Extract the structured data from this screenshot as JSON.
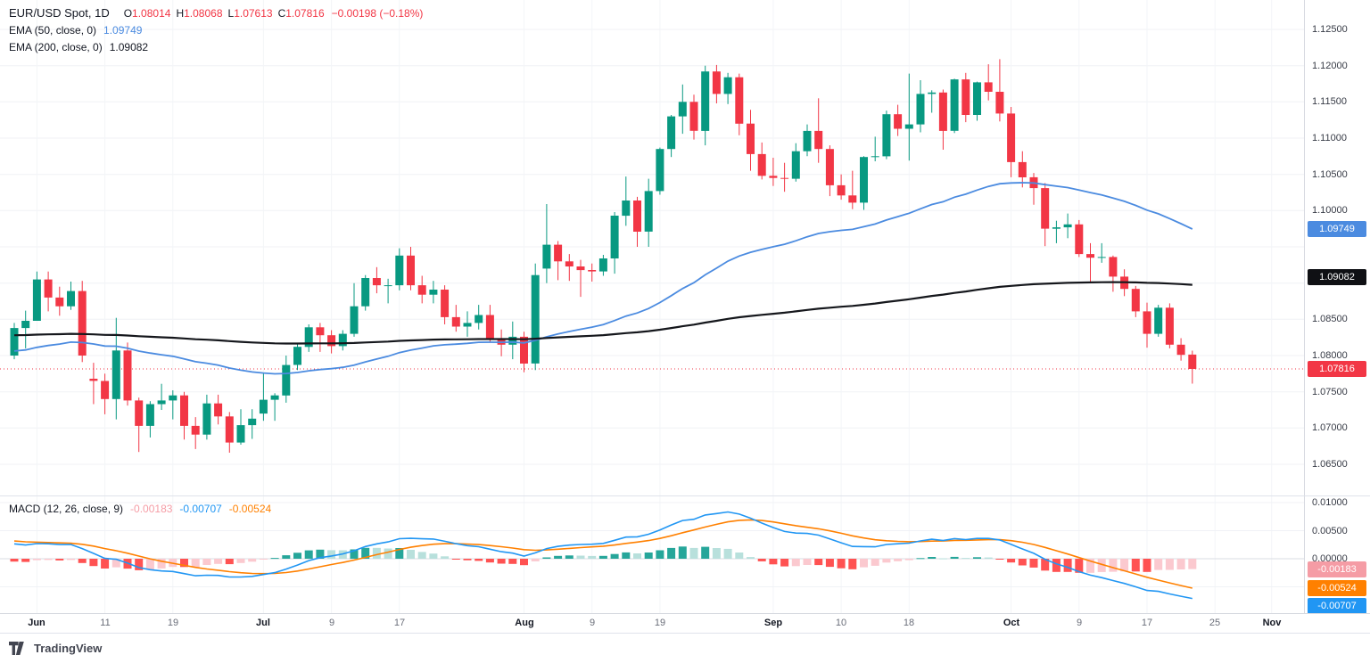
{
  "legend": {
    "symbol": "EUR/USD Spot, 1D",
    "ohlc": {
      "o_label": "O",
      "o": "1.08014",
      "h_label": "H",
      "h": "1.08068",
      "l_label": "L",
      "l": "1.07613",
      "c_label": "C",
      "c": "1.07816",
      "change": "−0.00198 (−0.18%)"
    },
    "ema50": {
      "label": "EMA (50, close, 0)",
      "value": "1.09749"
    },
    "ema200": {
      "label": "EMA (200, close, 0)",
      "value": "1.09082"
    },
    "macd": {
      "label": "MACD (12, 26, close, 9)",
      "hist_value": "-0.00183",
      "macd_value": "-0.00707",
      "signal_value": "-0.00524"
    }
  },
  "footer": {
    "brand": "TradingView"
  },
  "colors": {
    "up": "#089981",
    "down": "#f23645",
    "grid": "#f0f2f6",
    "grid_v": "#f3f5f8",
    "zero_line": "#dadde3",
    "ema50": "#4b8be0",
    "ema200": "#15171c",
    "macd_line": "#2196f3",
    "signal_line": "#ff8000",
    "hist_up": "#26a69a",
    "hist_up_fade": "#b8e0dc",
    "hist_down": "#ff5252",
    "hist_down_fade": "#fbc9cf",
    "last_close_line": "#f23645"
  },
  "chart_data": {
    "type": "candlestick",
    "title": "EUR/USD Spot, 1D",
    "symbol": "EUR/USD Spot",
    "interval": "1D",
    "ylim": [
      1.0607,
      1.12906
    ],
    "grid": true,
    "legend_position": "top-left",
    "price_ticks": [
      "1.12500",
      "1.12000",
      "1.11500",
      "1.11000",
      "1.10500",
      "1.10000",
      "1.08500",
      "1.08000",
      "1.07500",
      "1.07000",
      "1.06500"
    ],
    "price_badges": [
      {
        "text": "1.09749",
        "bg": "#4b8be0"
      },
      {
        "text": "1.09082",
        "bg": "#0f1014"
      },
      {
        "text": "1.07816",
        "bg": "#f23645"
      }
    ],
    "last_close": 1.07816,
    "candles": [
      [
        "May 30",
        1.08,
        1.0845,
        1.0795,
        1.0838
      ],
      [
        "May 31",
        1.0838,
        1.0862,
        1.081,
        1.0848
      ],
      [
        "Jun 3",
        1.0848,
        1.0916,
        1.0848,
        1.0905
      ],
      [
        "Jun 4",
        1.0905,
        1.0916,
        1.0861,
        1.088
      ],
      [
        "Jun 5",
        1.088,
        1.0895,
        1.0855,
        1.0868
      ],
      [
        "Jun 6",
        1.0868,
        1.0902,
        1.0863,
        1.0889
      ],
      [
        "Jun 7",
        1.0889,
        1.0903,
        1.0791,
        1.08
      ],
      [
        "Jun 10",
        1.0768,
        1.079,
        1.0733,
        1.0765
      ],
      [
        "Jun 11",
        1.0765,
        1.0775,
        1.0719,
        1.074
      ],
      [
        "Jun 12",
        1.074,
        1.0852,
        1.0712,
        1.0807
      ],
      [
        "Jun 13",
        1.0807,
        1.0818,
        1.0731,
        1.0738
      ],
      [
        "Jun 14",
        1.0738,
        1.0742,
        1.0667,
        1.0703
      ],
      [
        "Jun 17",
        1.0703,
        1.0737,
        1.0687,
        1.0733
      ],
      [
        "Jun 18",
        1.0733,
        1.0761,
        1.0725,
        1.0738
      ],
      [
        "Jun 19",
        1.0738,
        1.0752,
        1.0712,
        1.0745
      ],
      [
        "Jun 20",
        1.0745,
        1.075,
        1.0684,
        1.0703
      ],
      [
        "Jun 21",
        1.0703,
        1.0715,
        1.0671,
        1.0691
      ],
      [
        "Jun 24",
        1.0691,
        1.0746,
        1.0684,
        1.0734
      ],
      [
        "Jun 25",
        1.0734,
        1.0746,
        1.0705,
        1.0716
      ],
      [
        "Jun 26",
        1.0716,
        1.0722,
        1.0666,
        1.068
      ],
      [
        "Jun 27",
        1.068,
        1.0726,
        1.0677,
        1.0704
      ],
      [
        "Jun 28",
        1.0704,
        1.0726,
        1.0685,
        1.0713
      ],
      [
        "Jul 1",
        1.072,
        1.0776,
        1.071,
        1.0739
      ],
      [
        "Jul 2",
        1.0739,
        1.0748,
        1.071,
        1.0745
      ],
      [
        "Jul 3",
        1.0745,
        1.08,
        1.0735,
        1.0787
      ],
      [
        "Jul 4",
        1.0787,
        1.0816,
        1.078,
        1.0812
      ],
      [
        "Jul 5",
        1.0812,
        1.0843,
        1.0805,
        1.0839
      ],
      [
        "Jul 8",
        1.0839,
        1.0845,
        1.0805,
        1.0828
      ],
      [
        "Jul 9",
        1.0828,
        1.0835,
        1.0803,
        1.0813
      ],
      [
        "Jul 10",
        1.0813,
        1.0835,
        1.0807,
        1.083
      ],
      [
        "Jul 11",
        1.083,
        1.09,
        1.0826,
        1.0868
      ],
      [
        "Jul 12",
        1.0868,
        1.0911,
        1.0862,
        1.0907
      ],
      [
        "Jul 15",
        1.0907,
        1.0922,
        1.0886,
        1.0897
      ],
      [
        "Jul 16",
        1.0897,
        1.0906,
        1.0872,
        1.0897
      ],
      [
        "Jul 17",
        1.0897,
        1.0948,
        1.089,
        1.0938
      ],
      [
        "Jul 18",
        1.0938,
        1.095,
        1.089,
        1.0897
      ],
      [
        "Jul 19",
        1.0897,
        1.091,
        1.0872,
        1.0884
      ],
      [
        "Jul 22",
        1.0884,
        1.0903,
        1.0872,
        1.0891
      ],
      [
        "Jul 23",
        1.0891,
        1.0897,
        1.0843,
        1.0853
      ],
      [
        "Jul 24",
        1.0853,
        1.087,
        1.0833,
        1.084
      ],
      [
        "Jul 25",
        1.084,
        1.0861,
        1.0826,
        1.0845
      ],
      [
        "Jul 26",
        1.0845,
        1.087,
        1.0836,
        1.0856
      ],
      [
        "Jul 29",
        1.0856,
        1.087,
        1.0819,
        1.0823
      ],
      [
        "Jul 30",
        1.0823,
        1.0836,
        1.0799,
        1.0815
      ],
      [
        "Jul 31",
        1.0815,
        1.0847,
        1.0795,
        1.0826
      ],
      [
        "Aug 1",
        1.0826,
        1.0833,
        1.0777,
        1.0789
      ],
      [
        "Aug 2",
        1.0789,
        1.0927,
        1.078,
        1.0911
      ],
      [
        "Aug 5",
        1.092,
        1.1009,
        1.09,
        1.0953
      ],
      [
        "Aug 6",
        1.0953,
        1.0958,
        1.0904,
        1.093
      ],
      [
        "Aug 7",
        1.093,
        1.094,
        1.0903,
        1.0923
      ],
      [
        "Aug 8",
        1.0923,
        1.0932,
        1.0881,
        1.0918
      ],
      [
        "Aug 9",
        1.0918,
        1.0927,
        1.0902,
        1.0916
      ],
      [
        "Aug 12",
        1.0916,
        1.0939,
        1.091,
        1.0934
      ],
      [
        "Aug 13",
        1.0934,
        1.0998,
        1.0913,
        1.0993
      ],
      [
        "Aug 14",
        1.0993,
        1.1047,
        1.0979,
        1.1014
      ],
      [
        "Aug 15",
        1.1014,
        1.1019,
        1.095,
        1.0971
      ],
      [
        "Aug 16",
        1.0971,
        1.1044,
        1.095,
        1.1027
      ],
      [
        "Aug 19",
        1.1027,
        1.1087,
        1.1022,
        1.1085
      ],
      [
        "Aug 20",
        1.1085,
        1.1132,
        1.1074,
        1.113
      ],
      [
        "Aug 21",
        1.113,
        1.1174,
        1.1106,
        1.115
      ],
      [
        "Aug 22",
        1.115,
        1.116,
        1.1098,
        1.111
      ],
      [
        "Aug 23",
        1.111,
        1.12,
        1.109,
        1.1192
      ],
      [
        "Aug 26",
        1.1192,
        1.1201,
        1.1148,
        1.1161
      ],
      [
        "Aug 27",
        1.1161,
        1.119,
        1.1147,
        1.1184
      ],
      [
        "Aug 28",
        1.1184,
        1.1189,
        1.1104,
        1.112
      ],
      [
        "Aug 29",
        1.112,
        1.1139,
        1.1055,
        1.1078
      ],
      [
        "Aug 30",
        1.1078,
        1.1094,
        1.1043,
        1.1048
      ],
      [
        "Sep 2",
        1.1048,
        1.1073,
        1.1034,
        1.1045
      ],
      [
        "Sep 3",
        1.1045,
        1.1066,
        1.1026,
        1.1044
      ],
      [
        "Sep 4",
        1.1044,
        1.1093,
        1.104,
        1.1082
      ],
      [
        "Sep 5",
        1.1082,
        1.1119,
        1.1075,
        1.111
      ],
      [
        "Sep 6",
        1.111,
        1.1155,
        1.1066,
        1.1085
      ],
      [
        "Sep 9",
        1.1085,
        1.109,
        1.102,
        1.1035
      ],
      [
        "Sep 10",
        1.1035,
        1.105,
        1.1015,
        1.1021
      ],
      [
        "Sep 11",
        1.1021,
        1.1055,
        1.1002,
        1.1011
      ],
      [
        "Sep 12",
        1.1011,
        1.1075,
        1.1001,
        1.1074
      ],
      [
        "Sep 13",
        1.1074,
        1.1102,
        1.1068,
        1.1075
      ],
      [
        "Sep 16",
        1.1075,
        1.1138,
        1.1071,
        1.1133
      ],
      [
        "Sep 17",
        1.1133,
        1.1146,
        1.1103,
        1.1113
      ],
      [
        "Sep 18",
        1.1113,
        1.1189,
        1.1069,
        1.1119
      ],
      [
        "Sep 19",
        1.1119,
        1.118,
        1.1108,
        1.1161
      ],
      [
        "Sep 20",
        1.1161,
        1.1166,
        1.1135,
        1.1163
      ],
      [
        "Sep 23",
        1.1163,
        1.1167,
        1.1084,
        1.111
      ],
      [
        "Sep 24",
        1.111,
        1.1182,
        1.1107,
        1.1181
      ],
      [
        "Sep 25",
        1.1181,
        1.119,
        1.1122,
        1.1132
      ],
      [
        "Sep 26",
        1.1132,
        1.1178,
        1.1124,
        1.1177
      ],
      [
        "Sep 27",
        1.1177,
        1.1202,
        1.1152,
        1.1164
      ],
      [
        "Sep 30",
        1.1164,
        1.1209,
        1.1123,
        1.1134
      ],
      [
        "Oct 1",
        1.1134,
        1.1143,
        1.1046,
        1.1067
      ],
      [
        "Oct 2",
        1.1067,
        1.1082,
        1.1032,
        1.1046
      ],
      [
        "Oct 3",
        1.1046,
        1.1052,
        1.1008,
        1.1031
      ],
      [
        "Oct 4",
        1.1031,
        1.1038,
        1.0951,
        1.0975
      ],
      [
        "Oct 7",
        1.0975,
        1.0986,
        1.0955,
        1.0977
      ],
      [
        "Oct 8",
        1.0977,
        1.0996,
        1.0962,
        1.0981
      ],
      [
        "Oct 9",
        1.0981,
        1.0987,
        1.0936,
        1.094
      ],
      [
        "Oct 10",
        1.094,
        1.0955,
        1.09,
        1.0935
      ],
      [
        "Oct 11",
        1.0935,
        1.0955,
        1.0928,
        1.0936
      ],
      [
        "Oct 14",
        1.0936,
        1.0938,
        1.0888,
        1.0909
      ],
      [
        "Oct 15",
        1.0909,
        1.0919,
        1.0882,
        1.0892
      ],
      [
        "Oct 16",
        1.0892,
        1.0896,
        1.0853,
        1.0861
      ],
      [
        "Oct 17",
        1.0861,
        1.0873,
        1.0811,
        1.083
      ],
      [
        "Oct 18",
        1.083,
        1.087,
        1.0826,
        1.0866
      ],
      [
        "Oct 21",
        1.0866,
        1.0872,
        1.081,
        1.0815
      ],
      [
        "Oct 22",
        1.0815,
        1.0824,
        1.0793,
        1.0801
      ],
      [
        "Oct 23",
        1.08014,
        1.08068,
        1.07613,
        1.07816
      ]
    ],
    "overlays": [
      {
        "name": "EMA 50",
        "period": 50,
        "seed": 1.0805,
        "k": 0.037,
        "color": "#4b8be0",
        "width": 1.8,
        "last_value": 1.09749
      },
      {
        "name": "EMA 200",
        "period": 200,
        "seed": 1.0828,
        "k": 0.008,
        "color": "#15171c",
        "width": 2.2,
        "last_value": 1.09082
      }
    ],
    "macd": {
      "fast": 12,
      "slow": 26,
      "signal_period": 9,
      "seed_fast_offset": 0.0015,
      "seed_slow_offset": -0.0015,
      "seed_signal_offset": 0.0005,
      "last_hist": -0.00183,
      "last_macd": -0.00707,
      "last_signal": -0.00524,
      "ticks": [
        "0.01000",
        "0.00500",
        "0.00000"
      ],
      "badges": [
        {
          "text": "-0.00183",
          "bg": "#f59ca5"
        },
        {
          "text": "-0.00524",
          "bg": "#ff8000"
        },
        {
          "text": "-0.00707",
          "bg": "#2196f3"
        }
      ]
    },
    "time_labels": [
      {
        "t": "Jun",
        "i": 2,
        "m": 1
      },
      {
        "t": "11",
        "i": 8
      },
      {
        "t": "19",
        "i": 14
      },
      {
        "t": "Jul",
        "i": 22,
        "m": 1
      },
      {
        "t": "9",
        "i": 28
      },
      {
        "t": "17",
        "i": 34
      },
      {
        "t": "Aug",
        "i": 45,
        "m": 1
      },
      {
        "t": "9",
        "i": 51
      },
      {
        "t": "19",
        "i": 57
      },
      {
        "t": "Sep",
        "i": 67,
        "m": 1
      },
      {
        "t": "10",
        "i": 73
      },
      {
        "t": "18",
        "i": 79
      },
      {
        "t": "Oct",
        "i": 88,
        "m": 1
      },
      {
        "t": "9",
        "i": 94
      },
      {
        "t": "17",
        "i": 100
      },
      {
        "t": "25",
        "i": 106
      },
      {
        "t": "Nov",
        "i": 111,
        "m": 1
      }
    ]
  }
}
